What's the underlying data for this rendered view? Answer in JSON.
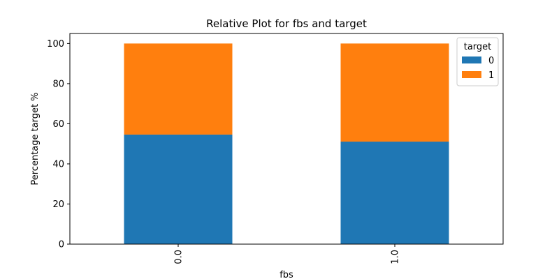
{
  "chart_data": {
    "type": "bar",
    "stacked": true,
    "title": "Relative Plot for fbs and target",
    "xlabel": "fbs",
    "ylabel": "Percentage target %",
    "categories": [
      "0.0",
      "1.0"
    ],
    "series": [
      {
        "name": "0",
        "values": [
          54.6,
          51.1
        ],
        "color": "#1f77b4"
      },
      {
        "name": "1",
        "values": [
          45.4,
          48.9
        ],
        "color": "#ff7f0e"
      }
    ],
    "ylim": [
      0,
      105
    ],
    "yticks": [
      "0",
      "20",
      "40",
      "60",
      "80",
      "100"
    ],
    "legend": {
      "title": "target",
      "placement": "top-right"
    },
    "grid": false
  }
}
